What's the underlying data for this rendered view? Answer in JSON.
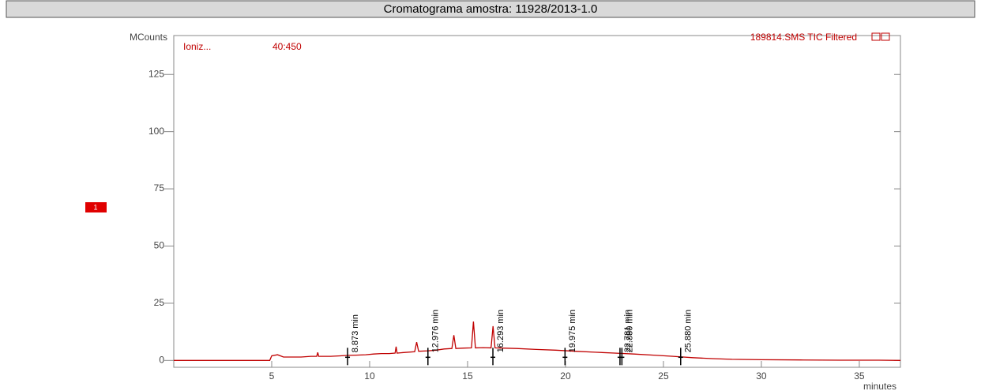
{
  "chart_data": {
    "type": "line",
    "title": "Cromatograma amostra: 11928/2013-1.0",
    "y_label": "MCounts",
    "x_label": "minutes",
    "header_left": "Ioniz...",
    "header_mid": "40:450",
    "marker_label": "1",
    "x": [
      0,
      4.9,
      5.0,
      5.3,
      5.6,
      6.0,
      6.5,
      7.0,
      7.3,
      7.35,
      7.4,
      8.0,
      8.5,
      8.9,
      9.3,
      9.8,
      10.2,
      10.6,
      11.0,
      11.3,
      11.35,
      11.4,
      11.8,
      12.3,
      12.4,
      12.5,
      13.0,
      13.4,
      13.8,
      14.2,
      14.3,
      14.4,
      14.8,
      15.2,
      15.3,
      15.4,
      15.8,
      16.2,
      16.3,
      16.4,
      16.8,
      17.5,
      18.5,
      19.5,
      20.5,
      21.5,
      22.5,
      23.5,
      24.5,
      25.5,
      26.5,
      27.5,
      28.5,
      30,
      32,
      34,
      36,
      37.1
    ],
    "series": [
      {
        "name": "189814.SMS TIC Filtered",
        "color": "#c00000",
        "values": [
          0,
          0,
          2,
          2.5,
          1.5,
          1.5,
          1.5,
          1.8,
          1.8,
          3.5,
          1.8,
          1.8,
          2,
          2.2,
          2.3,
          2.5,
          2.8,
          3,
          3,
          3.2,
          6,
          3.2,
          3.5,
          3.8,
          8,
          4,
          4.2,
          4.5,
          5,
          5.2,
          11,
          5.2,
          5.4,
          5.5,
          17,
          5.5,
          5.6,
          5.5,
          15,
          5.5,
          5.4,
          5.2,
          4.8,
          4.5,
          4,
          3.6,
          3.2,
          2.8,
          2.3,
          1.8,
          1.2,
          0.8,
          0.5,
          0.3,
          0.2,
          0.1,
          0.1,
          0
        ]
      }
    ],
    "peaks": [
      {
        "x": 8.873,
        "label": "8.873 min"
      },
      {
        "x": 12.976,
        "label": "12.976 min"
      },
      {
        "x": 16.293,
        "label": "16.293 min"
      },
      {
        "x": 19.975,
        "label": "19.975 min"
      },
      {
        "x": 22.781,
        "label": "22.781 min"
      },
      {
        "x": 22.88,
        "label": "22.880 min"
      },
      {
        "x": 25.88,
        "label": "25.880 min"
      }
    ],
    "xlim": [
      0,
      37.1
    ],
    "ylim": [
      -3,
      142
    ],
    "xticks": [
      5,
      10,
      15,
      20,
      25,
      30,
      35
    ],
    "yticks": [
      0,
      25,
      50,
      75,
      100,
      125
    ]
  }
}
